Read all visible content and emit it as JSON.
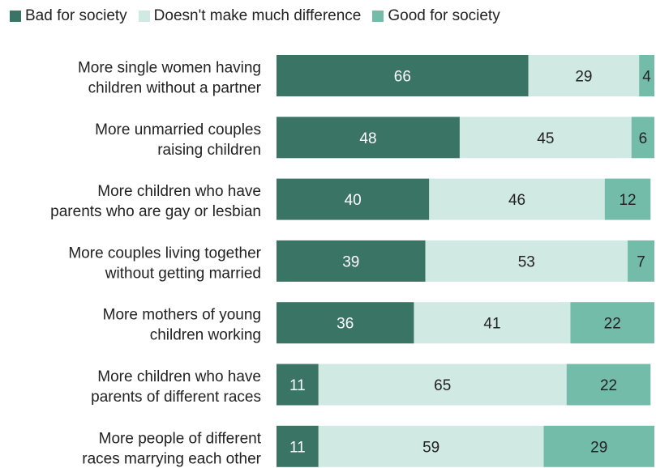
{
  "chart_data": {
    "type": "bar",
    "orientation": "horizontal",
    "stacked": true,
    "categories": [
      [
        "More single women having",
        "children without a partner"
      ],
      [
        "More unmarried couples",
        "raising children"
      ],
      [
        "More children who have",
        "parents who are gay or lesbian"
      ],
      [
        "More couples living together",
        "without getting married"
      ],
      [
        "More mothers of young",
        "children working"
      ],
      [
        "More children who have",
        "parents of different races"
      ],
      [
        "More people of different",
        "races marrying each other"
      ]
    ],
    "series": [
      {
        "name": "Bad for society",
        "color": "#3a7464",
        "label_color": "#ffffff",
        "values": [
          66,
          48,
          40,
          39,
          36,
          11,
          11
        ]
      },
      {
        "name": "Doesn't make much difference",
        "color": "#d1e9e3",
        "label_color": "#222222",
        "values": [
          29,
          45,
          46,
          53,
          41,
          65,
          59
        ]
      },
      {
        "name": "Good for society",
        "color": "#74bcaa",
        "label_color": "#222222",
        "values": [
          4,
          6,
          12,
          7,
          22,
          22,
          29
        ]
      }
    ],
    "xlim": [
      0,
      99
    ],
    "legend": "top",
    "grid": false
  }
}
